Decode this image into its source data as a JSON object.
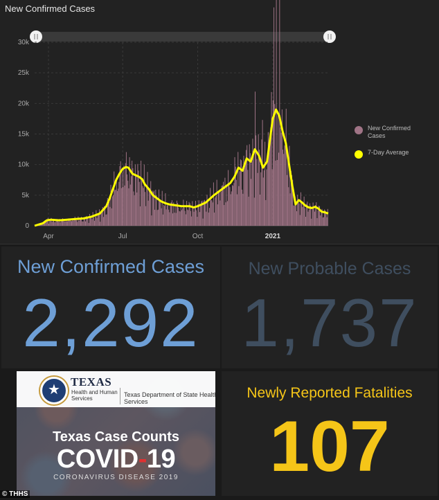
{
  "chart_panel": {
    "title": "New Confirmed Cases"
  },
  "chart_data": {
    "type": "bar",
    "title": "New Confirmed Cases",
    "series": [
      {
        "name": "New Confirmed Cases",
        "kind": "bar",
        "color": "#a07486"
      },
      {
        "name": "7-Day Average",
        "kind": "line",
        "color": "#ffff00"
      }
    ],
    "x_tick_labels": [
      "Apr",
      "Jul",
      "Oct",
      "2021"
    ],
    "y_tick_labels": [
      "0",
      "5k",
      "10k",
      "15k",
      "20k",
      "25k",
      "30k"
    ],
    "ylim": [
      0,
      30000
    ],
    "x_range_days": [
      0,
      360
    ],
    "x_tick_days": [
      17,
      108,
      200,
      292
    ],
    "avg_points": [
      [
        0,
        0
      ],
      [
        5,
        200
      ],
      [
        10,
        400
      ],
      [
        15,
        900
      ],
      [
        20,
        1000
      ],
      [
        30,
        900
      ],
      [
        40,
        1000
      ],
      [
        50,
        1100
      ],
      [
        60,
        1200
      ],
      [
        70,
        1500
      ],
      [
        80,
        2000
      ],
      [
        88,
        3200
      ],
      [
        92,
        4500
      ],
      [
        96,
        6000
      ],
      [
        100,
        7500
      ],
      [
        104,
        8500
      ],
      [
        108,
        9300
      ],
      [
        112,
        9600
      ],
      [
        115,
        9500
      ],
      [
        120,
        8500
      ],
      [
        125,
        8200
      ],
      [
        128,
        8000
      ],
      [
        132,
        7600
      ],
      [
        135,
        6800
      ],
      [
        140,
        6000
      ],
      [
        145,
        5000
      ],
      [
        150,
        4500
      ],
      [
        155,
        4000
      ],
      [
        160,
        3700
      ],
      [
        165,
        3500
      ],
      [
        170,
        3400
      ],
      [
        180,
        3200
      ],
      [
        190,
        3200
      ],
      [
        195,
        3000
      ],
      [
        200,
        3200
      ],
      [
        210,
        3800
      ],
      [
        220,
        5000
      ],
      [
        230,
        6000
      ],
      [
        240,
        7000
      ],
      [
        245,
        8000
      ],
      [
        250,
        9500
      ],
      [
        255,
        9000
      ],
      [
        260,
        11000
      ],
      [
        265,
        10500
      ],
      [
        270,
        12500
      ],
      [
        275,
        11500
      ],
      [
        280,
        9500
      ],
      [
        285,
        10500
      ],
      [
        288,
        13500
      ],
      [
        292,
        17500
      ],
      [
        296,
        19000
      ],
      [
        300,
        18000
      ],
      [
        304,
        15500
      ],
      [
        308,
        13500
      ],
      [
        312,
        10000
      ],
      [
        316,
        6500
      ],
      [
        320,
        3500
      ],
      [
        324,
        4200
      ],
      [
        328,
        3800
      ],
      [
        332,
        3300
      ],
      [
        336,
        3000
      ],
      [
        340,
        2900
      ],
      [
        344,
        3100
      ],
      [
        348,
        2800
      ],
      [
        352,
        2300
      ],
      [
        356,
        2200
      ],
      [
        360,
        2000
      ]
    ],
    "legend_position": "right"
  },
  "stats": {
    "confirmed": {
      "label": "New Confirmed Cases",
      "value": "2,292",
      "color": "#6e9fd6"
    },
    "probable": {
      "label": "New Probable Cases",
      "value": "1,737",
      "color": "#3f4e5f"
    },
    "fatalities": {
      "label": "Newly Reported Fatalities",
      "value": "107",
      "color": "#f5c518"
    }
  },
  "banner": {
    "agency": "TEXAS",
    "agency_sub": "Health and Human Services",
    "dept": "Texas Department of State Health Services",
    "headline": "Texas Case Counts",
    "covid_word": "COVID",
    "covid_dash": "-",
    "covid_num": "19",
    "disease": "CORONAVIRUS DISEASE 2019"
  },
  "credit": "© THHS"
}
